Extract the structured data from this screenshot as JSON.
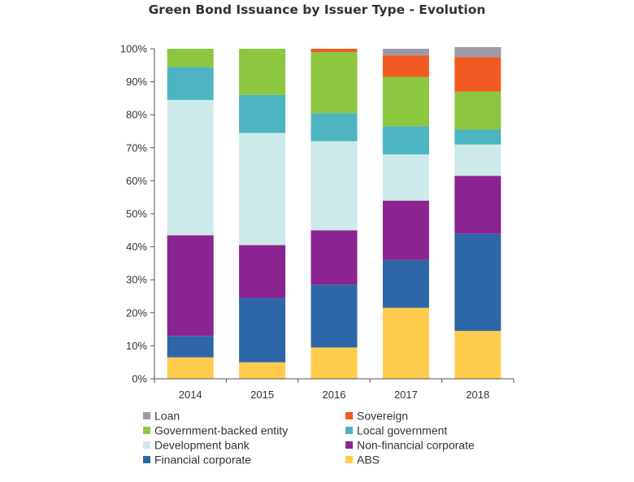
{
  "chart_data": {
    "type": "bar",
    "stacked": true,
    "title": "Green Bond Issuance by Issuer Type - Evolution",
    "xlabel": "",
    "ylabel": "",
    "ylim": [
      0,
      100
    ],
    "y_ticks": [
      "0%",
      "10%",
      "20%",
      "30%",
      "40%",
      "50%",
      "60%",
      "70%",
      "80%",
      "90%",
      "100%"
    ],
    "categories": [
      "2014",
      "2015",
      "2016",
      "2017",
      "2018"
    ],
    "legend_position": "bottom",
    "series": [
      {
        "name": "ABS",
        "color": "#FFCC4D",
        "values": [
          6.5,
          5.0,
          9.5,
          21.5,
          14.5
        ]
      },
      {
        "name": "Financial corporate",
        "color": "#2E67A8",
        "values": [
          6.5,
          19.5,
          19.0,
          14.5,
          29.5
        ]
      },
      {
        "name": "Non-financial corporate",
        "color": "#8B2490",
        "values": [
          30.5,
          16.0,
          16.5,
          18.0,
          17.5
        ]
      },
      {
        "name": "Development bank",
        "color": "#CCEAE9",
        "values": [
          41.0,
          34.0,
          27.0,
          14.0,
          9.5
        ]
      },
      {
        "name": "Local government",
        "color": "#4DB4C2",
        "values": [
          10.0,
          11.5,
          8.5,
          8.5,
          4.5
        ]
      },
      {
        "name": "Government-backed entity",
        "color": "#8DC63F",
        "values": [
          5.5,
          14.0,
          18.5,
          15.0,
          11.5
        ]
      },
      {
        "name": "Sovereign",
        "color": "#F15A22",
        "values": [
          0,
          0,
          1.0,
          6.5,
          10.5
        ]
      },
      {
        "name": "Loan",
        "color": "#9B9BA8",
        "values": [
          0,
          0,
          0,
          2.0,
          3.0
        ]
      }
    ],
    "legend_order": [
      "Loan",
      "Sovereign",
      "Government-backed entity",
      "Local government",
      "Development bank",
      "Non-financial corporate",
      "Financial corporate",
      "ABS"
    ]
  }
}
